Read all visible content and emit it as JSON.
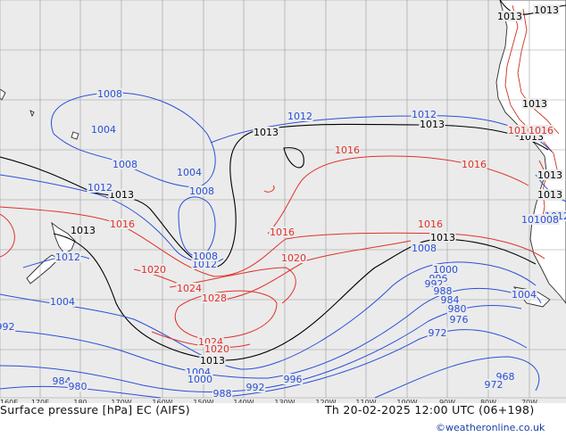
{
  "map": {
    "title": "Surface pressure [hPa] EC (AIFS)",
    "valid_time": "Th 20-02-2025 12:00 UTC (06+198)",
    "credit": "©weatheronline.co.uk",
    "colors": {
      "ocean": "#ebebeb",
      "land": "#ffffff",
      "grid": "#9a9a9a",
      "isobar_low": "#2a4fd8",
      "isobar_ref": "#000000",
      "isobar_high": "#e0312a",
      "coast": "#2b2b2b",
      "terrain_contour": "#cc3322"
    },
    "longitude_labels": [
      "160E",
      "170E",
      "180",
      "170W",
      "160W",
      "150W",
      "140W",
      "130W",
      "120W",
      "110W",
      "100W",
      "90W",
      "80W",
      "70W"
    ],
    "pressure_labels": [
      {
        "text": "1013",
        "level": "ref"
      },
      {
        "text": "1013",
        "level": "ref"
      },
      {
        "text": "1013",
        "level": "ref"
      },
      {
        "text": "1013",
        "level": "ref"
      },
      {
        "text": "1013",
        "level": "ref"
      },
      {
        "text": "1013",
        "level": "ref"
      },
      {
        "text": "1013",
        "level": "ref"
      },
      {
        "text": "1013",
        "level": "ref"
      },
      {
        "text": "1013",
        "level": "ref"
      },
      {
        "text": "1013",
        "level": "ref"
      },
      {
        "text": "1013",
        "level": "ref"
      },
      {
        "text": "1013",
        "level": "ref"
      },
      {
        "text": "1008",
        "level": "low"
      },
      {
        "text": "1004",
        "level": "low"
      },
      {
        "text": "1008",
        "level": "low"
      },
      {
        "text": "1004",
        "level": "low"
      },
      {
        "text": "1008",
        "level": "low"
      },
      {
        "text": "1012",
        "level": "low"
      },
      {
        "text": "1012",
        "level": "low"
      },
      {
        "text": "1012",
        "level": "low"
      },
      {
        "text": "1012",
        "level": "low"
      },
      {
        "text": "1008",
        "level": "low"
      },
      {
        "text": "1012",
        "level": "low"
      },
      {
        "text": "1008",
        "level": "low"
      },
      {
        "text": "1012",
        "level": "low"
      },
      {
        "text": "1008",
        "level": "low"
      },
      {
        "text": "1008",
        "level": "low"
      },
      {
        "text": "1004",
        "level": "low"
      },
      {
        "text": "1004",
        "level": "low"
      },
      {
        "text": "1000",
        "level": "low"
      },
      {
        "text": "996",
        "level": "low"
      },
      {
        "text": "992",
        "level": "low"
      },
      {
        "text": "988",
        "level": "low"
      },
      {
        "text": "984",
        "level": "low"
      },
      {
        "text": "980",
        "level": "low"
      },
      {
        "text": "976",
        "level": "low"
      },
      {
        "text": "972",
        "level": "low"
      },
      {
        "text": "968",
        "level": "low"
      },
      {
        "text": "972",
        "level": "low"
      },
      {
        "text": "1004",
        "level": "low"
      },
      {
        "text": "1000",
        "level": "low"
      },
      {
        "text": "996",
        "level": "low"
      },
      {
        "text": "992",
        "level": "low"
      },
      {
        "text": "988",
        "level": "low"
      },
      {
        "text": "984",
        "level": "low"
      },
      {
        "text": "980",
        "level": "low"
      },
      {
        "text": "992",
        "level": "low"
      },
      {
        "text": "1016",
        "level": "high"
      },
      {
        "text": "1016",
        "level": "high"
      },
      {
        "text": "1016",
        "level": "high"
      },
      {
        "text": "1016",
        "level": "high"
      },
      {
        "text": "1016",
        "level": "high"
      },
      {
        "text": "1020",
        "level": "high"
      },
      {
        "text": "1020",
        "level": "high"
      },
      {
        "text": "1024",
        "level": "high"
      },
      {
        "text": "1028",
        "level": "high"
      },
      {
        "text": "1024",
        "level": "high"
      },
      {
        "text": "1020",
        "level": "high"
      },
      {
        "text": "1016",
        "level": "high"
      },
      {
        "text": "1016",
        "level": "high"
      }
    ]
  }
}
